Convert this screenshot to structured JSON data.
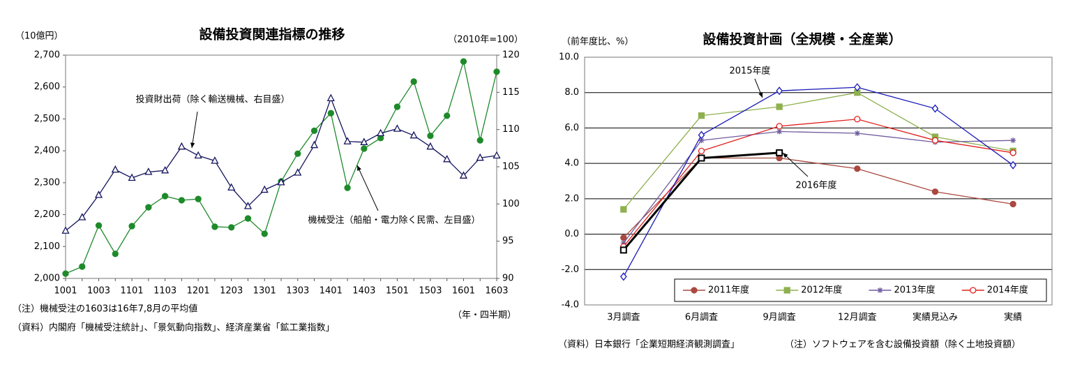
{
  "chart_data": [
    {
      "type": "line",
      "title": "設備投資関連指標の推移",
      "ylabel": "（10億円）",
      "y2label": "（2010年=100）",
      "xlabel": "（年・四半期）",
      "notes": [
        "（注）機械受注の1603は16年7,8月の平均値",
        "（資料）内閣府「機械受注統計」、「景気動向指数」、経済産業省「鉱工業指数」"
      ],
      "categories": [
        "1001",
        null,
        "1003",
        null,
        "1101",
        null,
        "1103",
        null,
        "1201",
        null,
        "1203",
        null,
        "1301",
        null,
        "1303",
        null,
        "1401",
        null,
        "1403",
        null,
        "1501",
        null,
        "1503",
        null,
        "1601",
        null,
        "1603"
      ],
      "series": [
        {
          "name": "機械受注（船舶・電力除く民需、左目盛）",
          "color": "#1e8a2a",
          "marker": "circle",
          "axis": "y",
          "values": [
            2015,
            2037,
            2166,
            2077,
            2164,
            2223,
            2258,
            2245,
            2249,
            2162,
            2160,
            2188,
            2140,
            2304,
            2391,
            2463,
            2518,
            2284,
            2407,
            2440,
            2538,
            2617,
            2447,
            2510,
            2680,
            2433,
            2648
          ]
        },
        {
          "name": "投資財出荷（除く輸送機械、右目盛）",
          "color": "#14145e",
          "marker": "triangle-open",
          "axis": "y2",
          "values": [
            96.4,
            98.2,
            101.2,
            104.6,
            103.5,
            104.3,
            104.5,
            107.7,
            106.5,
            105.8,
            102.2,
            99.7,
            101.9,
            102.9,
            104.2,
            107.9,
            114.2,
            108.4,
            108.3,
            109.5,
            110.1,
            109.2,
            107.7,
            106.0,
            103.8,
            106.2,
            106.5
          ]
        }
      ],
      "ylim": [
        2000,
        2700
      ],
      "yticks": [
        {
          "value": 2000,
          "label": "2,000"
        },
        {
          "value": 2100,
          "label": "2,100"
        },
        {
          "value": 2200,
          "label": "2,200"
        },
        {
          "value": 2300,
          "label": "2,300"
        },
        {
          "value": 2400,
          "label": "2,400"
        },
        {
          "value": 2500,
          "label": "2,500"
        },
        {
          "value": 2600,
          "label": "2,600"
        },
        {
          "value": 2700,
          "label": "2,700"
        }
      ],
      "y2lim": [
        90,
        120
      ],
      "y2ticks": [
        90,
        95,
        100,
        105,
        110,
        115,
        120
      ],
      "grid": false
    },
    {
      "type": "line",
      "title": "設備投資計画（全規模・全産業）",
      "ylabel": "（前年度比、%）",
      "notes": [
        "（資料）日本銀行「企業短期経済観測調査」",
        "（注）ソフトウェアを含む設備投資額（除く土地投資額）"
      ],
      "categories": [
        "3月調査",
        "6月調査",
        "9月調査",
        "12月調査",
        "実績見込み",
        "実績"
      ],
      "series": [
        {
          "name": "2011年度",
          "color": "#a9493f",
          "marker": "circle",
          "values": [
            -0.2,
            4.3,
            4.3,
            3.7,
            2.4,
            1.7
          ]
        },
        {
          "name": "2012年度",
          "color": "#8fb04f",
          "marker": "square",
          "values": [
            1.4,
            6.7,
            7.2,
            8.0,
            5.5,
            4.7
          ]
        },
        {
          "name": "2013年度",
          "color": "#6e5a9e",
          "marker": "star",
          "values": [
            -0.5,
            5.3,
            5.8,
            5.7,
            5.2,
            5.3
          ]
        },
        {
          "name": "2014年度",
          "color": "#e0201c",
          "marker": "circle-open",
          "values": [
            -0.7,
            4.7,
            6.1,
            6.5,
            5.3,
            4.6
          ]
        },
        {
          "name": "2015年度",
          "color": "#1a1ab8",
          "marker": "diamond-open",
          "legend": false,
          "values": [
            -2.4,
            5.6,
            8.1,
            8.3,
            7.1,
            3.9
          ]
        },
        {
          "name": "2016年度",
          "color": "#000000",
          "marker": "square-open",
          "legend": false,
          "line_width": 3,
          "values": [
            -0.9,
            4.3,
            4.6,
            null,
            null,
            null
          ]
        }
      ],
      "ylim": [
        -4,
        10
      ],
      "yticks": [
        {
          "value": -4,
          "label": "-4.0"
        },
        {
          "value": -2,
          "label": "-2.0"
        },
        {
          "value": 0,
          "label": "0.0"
        },
        {
          "value": 2,
          "label": "2.0"
        },
        {
          "value": 4,
          "label": "4.0"
        },
        {
          "value": 6,
          "label": "6.0"
        },
        {
          "value": 8,
          "label": "8.0"
        },
        {
          "value": 10,
          "label": "10.0"
        }
      ],
      "grid": true
    }
  ]
}
